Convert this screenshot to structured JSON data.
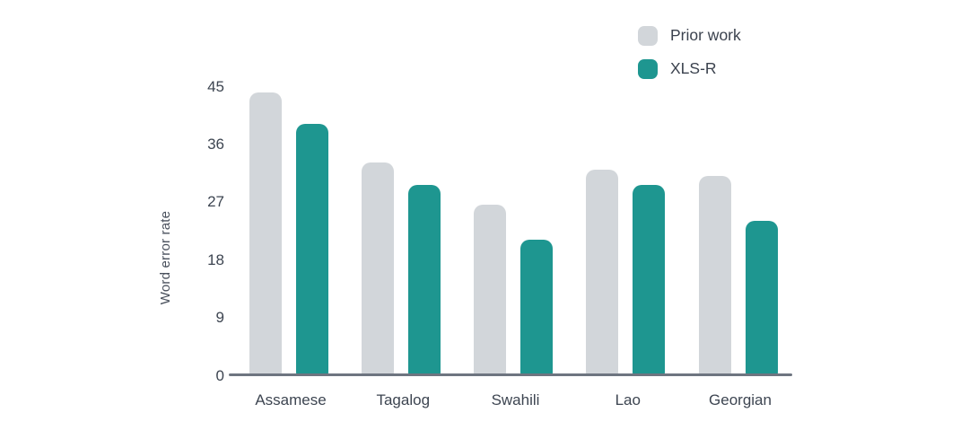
{
  "chart_data": {
    "type": "bar",
    "title": "",
    "xlabel": "",
    "ylabel": "Word error rate",
    "categories": [
      "Assamese",
      "Tagalog",
      "Swahili",
      "Lao",
      "Georgian"
    ],
    "series": [
      {
        "name": "Prior work",
        "color": "#d2d6da",
        "values": [
          44,
          33,
          26.5,
          32,
          31
        ]
      },
      {
        "name": "XLS-R",
        "color": "#1e9690",
        "values": [
          39,
          29.5,
          21,
          29.5,
          24
        ]
      }
    ],
    "ylim": [
      0,
      45
    ],
    "yticks": [
      0,
      9,
      18,
      27,
      36,
      45
    ],
    "grid": false,
    "legend_position": "top-right"
  },
  "colors": {
    "axis_line": "#6e7580",
    "tick_text": "#3d4551",
    "axis_title_text": "#49505c",
    "background": "#ffffff"
  }
}
